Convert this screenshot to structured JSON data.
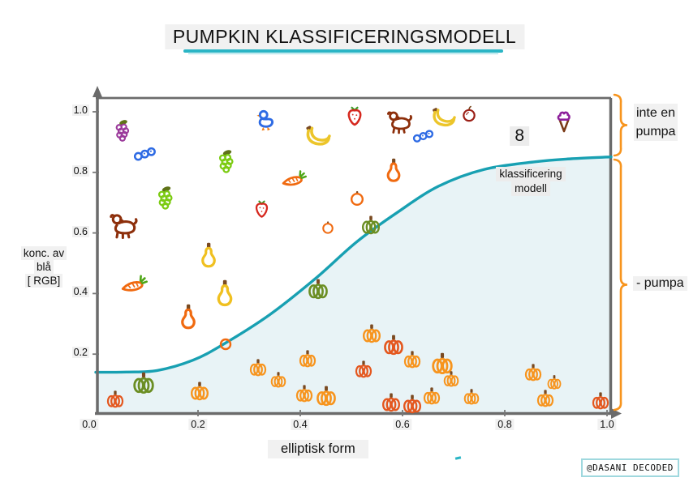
{
  "title": "PUMPKIN KLASSIFICERINGSMODELL",
  "watermark": "@DASANI DECODED",
  "labels": {
    "y_axis_line1": "konc. av",
    "y_axis_line2": "blå",
    "y_axis_line3": "[ RGB]",
    "x_axis": "elliptisk form",
    "model_line1": "klassificering",
    "model_line2": "modell",
    "region_top_line1": "inte en",
    "region_top_line2": "pumpa",
    "region_bottom": "- pumpa"
  },
  "colors": {
    "axis": "#6b6b6b",
    "curve": "#18a0b2",
    "curve_fill": "#e8f3f6",
    "bracket": "#f7941d",
    "underline": "#2ab5c5",
    "label_bg": "#f1f1f1",
    "stem": "#7a4a21",
    "pumpkin": "#f7941d",
    "pumpkin_dark": "#e4571e",
    "pumpkin_green": "#6b8e23",
    "grapes_purple": "#9b3a9b",
    "grapes_green": "#7ccb12",
    "leaf_olive": "#5f7318",
    "caterpillar": "#2e6be4",
    "dog": "#8d2f0b",
    "strawberry": "#d6281e",
    "strawberry_leaf": "#3f9b26",
    "banana": "#ecc52a",
    "duck_outline": "#2e6be4",
    "duck_accent": "#f07a10",
    "apple": "#9b1f16",
    "icecream_scoop": "#8d1f9b",
    "icecream_cone": "#7a3a16",
    "carrot": "#f06a10",
    "carrot_top": "#4ea616",
    "orange_fruit": "#f06a10",
    "pear": "#f06a10",
    "gourd": "#f0c020"
  },
  "chart_data": {
    "type": "scatter",
    "title": "PUMPKIN KLASSIFICERINGSMODELL",
    "xlabel": "elliptisk form",
    "ylabel": "konc. av blå [ RGB]",
    "xlim": [
      0.0,
      1.0
    ],
    "ylim": [
      0.0,
      1.0
    ],
    "x_ticks": [
      0.0,
      0.2,
      0.4,
      0.6,
      0.8,
      1.0
    ],
    "y_ticks": [
      0.2,
      0.4,
      0.6,
      0.8,
      1.0
    ],
    "regions": {
      "above_curve": "inte en pumpa",
      "below_curve": "pumpa"
    },
    "curve": {
      "name": "klassificering modell",
      "points": [
        [
          0.0,
          0.14
        ],
        [
          0.06,
          0.141
        ],
        [
          0.12,
          0.146
        ],
        [
          0.19,
          0.18
        ],
        [
          0.25,
          0.233
        ],
        [
          0.34,
          0.33
        ],
        [
          0.43,
          0.45
        ],
        [
          0.51,
          0.57
        ],
        [
          0.59,
          0.668
        ],
        [
          0.67,
          0.754
        ],
        [
          0.76,
          0.81
        ],
        [
          0.86,
          0.835
        ],
        [
          0.93,
          0.845
        ],
        [
          1.0,
          0.851
        ]
      ]
    },
    "points": [
      {
        "x": 0.054,
        "y": 0.936,
        "t": "grapes-purple",
        "s": 30
      },
      {
        "x": 0.097,
        "y": 0.864,
        "t": "caterpillar",
        "s": 30
      },
      {
        "x": 0.257,
        "y": 0.834,
        "t": "grapes-green",
        "s": 32
      },
      {
        "x": 0.138,
        "y": 0.714,
        "t": "grapes-green",
        "s": 32
      },
      {
        "x": 0.056,
        "y": 0.626,
        "t": "dog",
        "s": 42
      },
      {
        "x": 0.325,
        "y": 0.674,
        "t": "strawberry",
        "s": 27
      },
      {
        "x": 0.337,
        "y": 0.971,
        "t": "duck",
        "s": 34
      },
      {
        "x": 0.506,
        "y": 0.981,
        "t": "strawberry",
        "s": 30
      },
      {
        "x": 0.432,
        "y": 0.914,
        "t": "banana",
        "s": 36
      },
      {
        "x": 0.595,
        "y": 0.968,
        "t": "dog",
        "s": 38
      },
      {
        "x": 0.678,
        "y": 0.976,
        "t": "banana",
        "s": 34
      },
      {
        "x": 0.73,
        "y": 0.99,
        "t": "apple",
        "s": 24
      },
      {
        "x": 0.641,
        "y": 0.922,
        "t": "caterpillar",
        "s": 28
      },
      {
        "x": 0.829,
        "y": 0.92,
        "t": "label",
        "label": "8",
        "s": 24
      },
      {
        "x": 0.916,
        "y": 0.968,
        "t": "icecream",
        "s": 30
      },
      {
        "x": 0.583,
        "y": 0.799,
        "t": "pear",
        "s": 36
      },
      {
        "x": 0.387,
        "y": 0.775,
        "t": "carrot",
        "s": 32
      },
      {
        "x": 0.511,
        "y": 0.714,
        "t": "orange",
        "s": 26
      },
      {
        "x": 0.454,
        "y": 0.618,
        "t": "orange",
        "s": 22
      },
      {
        "x": 0.538,
        "y": 0.626,
        "t": "pumpkin-green",
        "s": 26
      },
      {
        "x": 0.075,
        "y": 0.428,
        "t": "carrot",
        "s": 34
      },
      {
        "x": 0.221,
        "y": 0.519,
        "t": "gourd",
        "s": 38
      },
      {
        "x": 0.252,
        "y": 0.393,
        "t": "gourd",
        "s": 40
      },
      {
        "x": 0.181,
        "y": 0.316,
        "t": "pear",
        "s": 38
      },
      {
        "x": 0.254,
        "y": 0.233,
        "t": "ring",
        "s": 24
      },
      {
        "x": 0.435,
        "y": 0.414,
        "t": "pumpkin-green",
        "s": 28
      },
      {
        "x": 0.094,
        "y": 0.104,
        "t": "pumpkin-green",
        "s": 30
      },
      {
        "x": 0.038,
        "y": 0.051,
        "t": "pumpkin",
        "v": "dark",
        "s": 24
      },
      {
        "x": 0.203,
        "y": 0.078,
        "t": "pumpkin",
        "s": 26
      },
      {
        "x": 0.317,
        "y": 0.155,
        "t": "pumpkin",
        "s": 24
      },
      {
        "x": 0.357,
        "y": 0.115,
        "t": "pumpkin",
        "s": 22
      },
      {
        "x": 0.54,
        "y": 0.267,
        "t": "pumpkin",
        "s": 26
      },
      {
        "x": 0.583,
        "y": 0.23,
        "t": "pumpkin",
        "v": "dark",
        "s": 28
      },
      {
        "x": 0.414,
        "y": 0.184,
        "t": "pumpkin",
        "s": 24
      },
      {
        "x": 0.619,
        "y": 0.182,
        "t": "pumpkin",
        "s": 24
      },
      {
        "x": 0.678,
        "y": 0.168,
        "t": "pumpkin",
        "s": 30
      },
      {
        "x": 0.524,
        "y": 0.15,
        "t": "pumpkin",
        "v": "dark",
        "s": 24
      },
      {
        "x": 0.695,
        "y": 0.118,
        "t": "pumpkin",
        "s": 22
      },
      {
        "x": 0.408,
        "y": 0.07,
        "t": "pumpkin",
        "s": 24
      },
      {
        "x": 0.451,
        "y": 0.062,
        "t": "pumpkin",
        "s": 28
      },
      {
        "x": 0.578,
        "y": 0.04,
        "t": "pumpkin",
        "v": "dark",
        "s": 26
      },
      {
        "x": 0.619,
        "y": 0.035,
        "t": "pumpkin",
        "v": "dark",
        "s": 26
      },
      {
        "x": 0.657,
        "y": 0.062,
        "t": "pumpkin",
        "s": 24
      },
      {
        "x": 0.735,
        "y": 0.059,
        "t": "pumpkin",
        "s": 22
      },
      {
        "x": 0.856,
        "y": 0.139,
        "t": "pumpkin",
        "s": 24
      },
      {
        "x": 0.897,
        "y": 0.107,
        "t": "pumpkin",
        "s": 20
      },
      {
        "x": 0.879,
        "y": 0.053,
        "t": "pumpkin",
        "s": 24
      },
      {
        "x": 0.987,
        "y": 0.045,
        "t": "pumpkin",
        "v": "dark",
        "s": 24
      }
    ]
  }
}
